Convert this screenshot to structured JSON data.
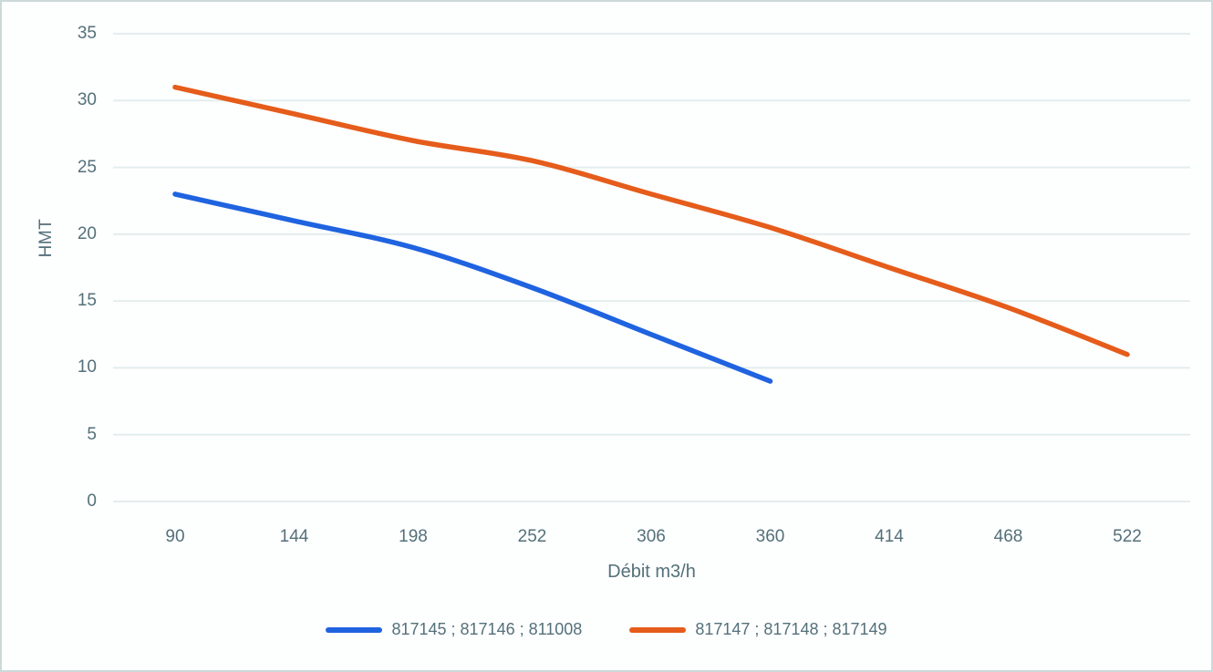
{
  "chart_data": {
    "type": "line",
    "title": "",
    "xlabel": "Débit m3/h",
    "ylabel": "HMT",
    "x_ticks": [
      90,
      144,
      198,
      252,
      306,
      360,
      414,
      468,
      522
    ],
    "y_ticks": [
      35,
      30,
      25,
      20,
      15,
      10,
      5,
      0
    ],
    "ylim": [
      0,
      35
    ],
    "grid": "horizontal",
    "legend_position": "bottom",
    "series": [
      {
        "name": "817145 ; 817146 ; 811008",
        "color": "#1f63e0",
        "x": [
          90,
          144,
          198,
          252,
          306,
          360
        ],
        "y": [
          23,
          21,
          19,
          16,
          12.5,
          9
        ]
      },
      {
        "name": "817147 ; 817148 ; 817149",
        "color": "#e55c1b",
        "x": [
          90,
          144,
          198,
          252,
          306,
          360,
          414,
          468,
          522
        ],
        "y": [
          31,
          29,
          27,
          25.5,
          23,
          20.5,
          17.5,
          14.5,
          11
        ]
      }
    ]
  },
  "colors": {
    "gridline": "#e4eded",
    "frame_border": "#ccd9d9",
    "tick_text": "#54707a",
    "background": "#fdfefe"
  }
}
